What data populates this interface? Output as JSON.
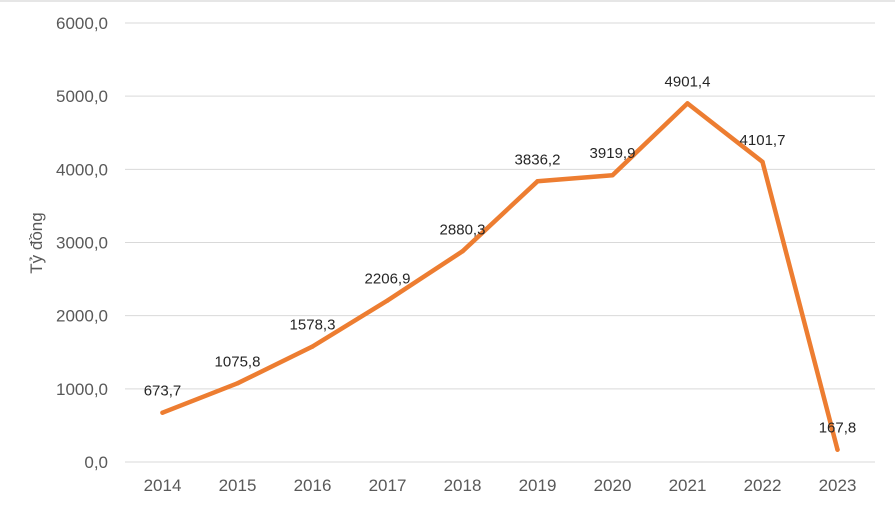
{
  "chart_data": {
    "type": "line",
    "title": "",
    "xlabel": "",
    "ylabel": "Tỷ đồng",
    "categories": [
      "2014",
      "2015",
      "2016",
      "2017",
      "2018",
      "2019",
      "2020",
      "2021",
      "2022",
      "2023"
    ],
    "series": [
      {
        "values": [
          673.7,
          1075.8,
          1578.3,
          2206.9,
          2880.3,
          3836.2,
          3919.9,
          4901.4,
          4101.7,
          167.8
        ],
        "labels": [
          "673,7",
          "1075,8",
          "1578,3",
          "2206,9",
          "2880,3",
          "3836,2",
          "3919,9",
          "4901,4",
          "4101,7",
          "167,8"
        ],
        "color": "#ED7D31"
      }
    ],
    "ylim": [
      0,
      6000
    ],
    "yticks": [
      0,
      1000,
      2000,
      3000,
      4000,
      5000,
      6000
    ],
    "ytick_labels": [
      "0,0",
      "1000,0",
      "2000,0",
      "3000,0",
      "4000,0",
      "5000,0",
      "6000,0"
    ],
    "grid": true,
    "legend": "none",
    "gridline_color": "#d9d9d9"
  }
}
